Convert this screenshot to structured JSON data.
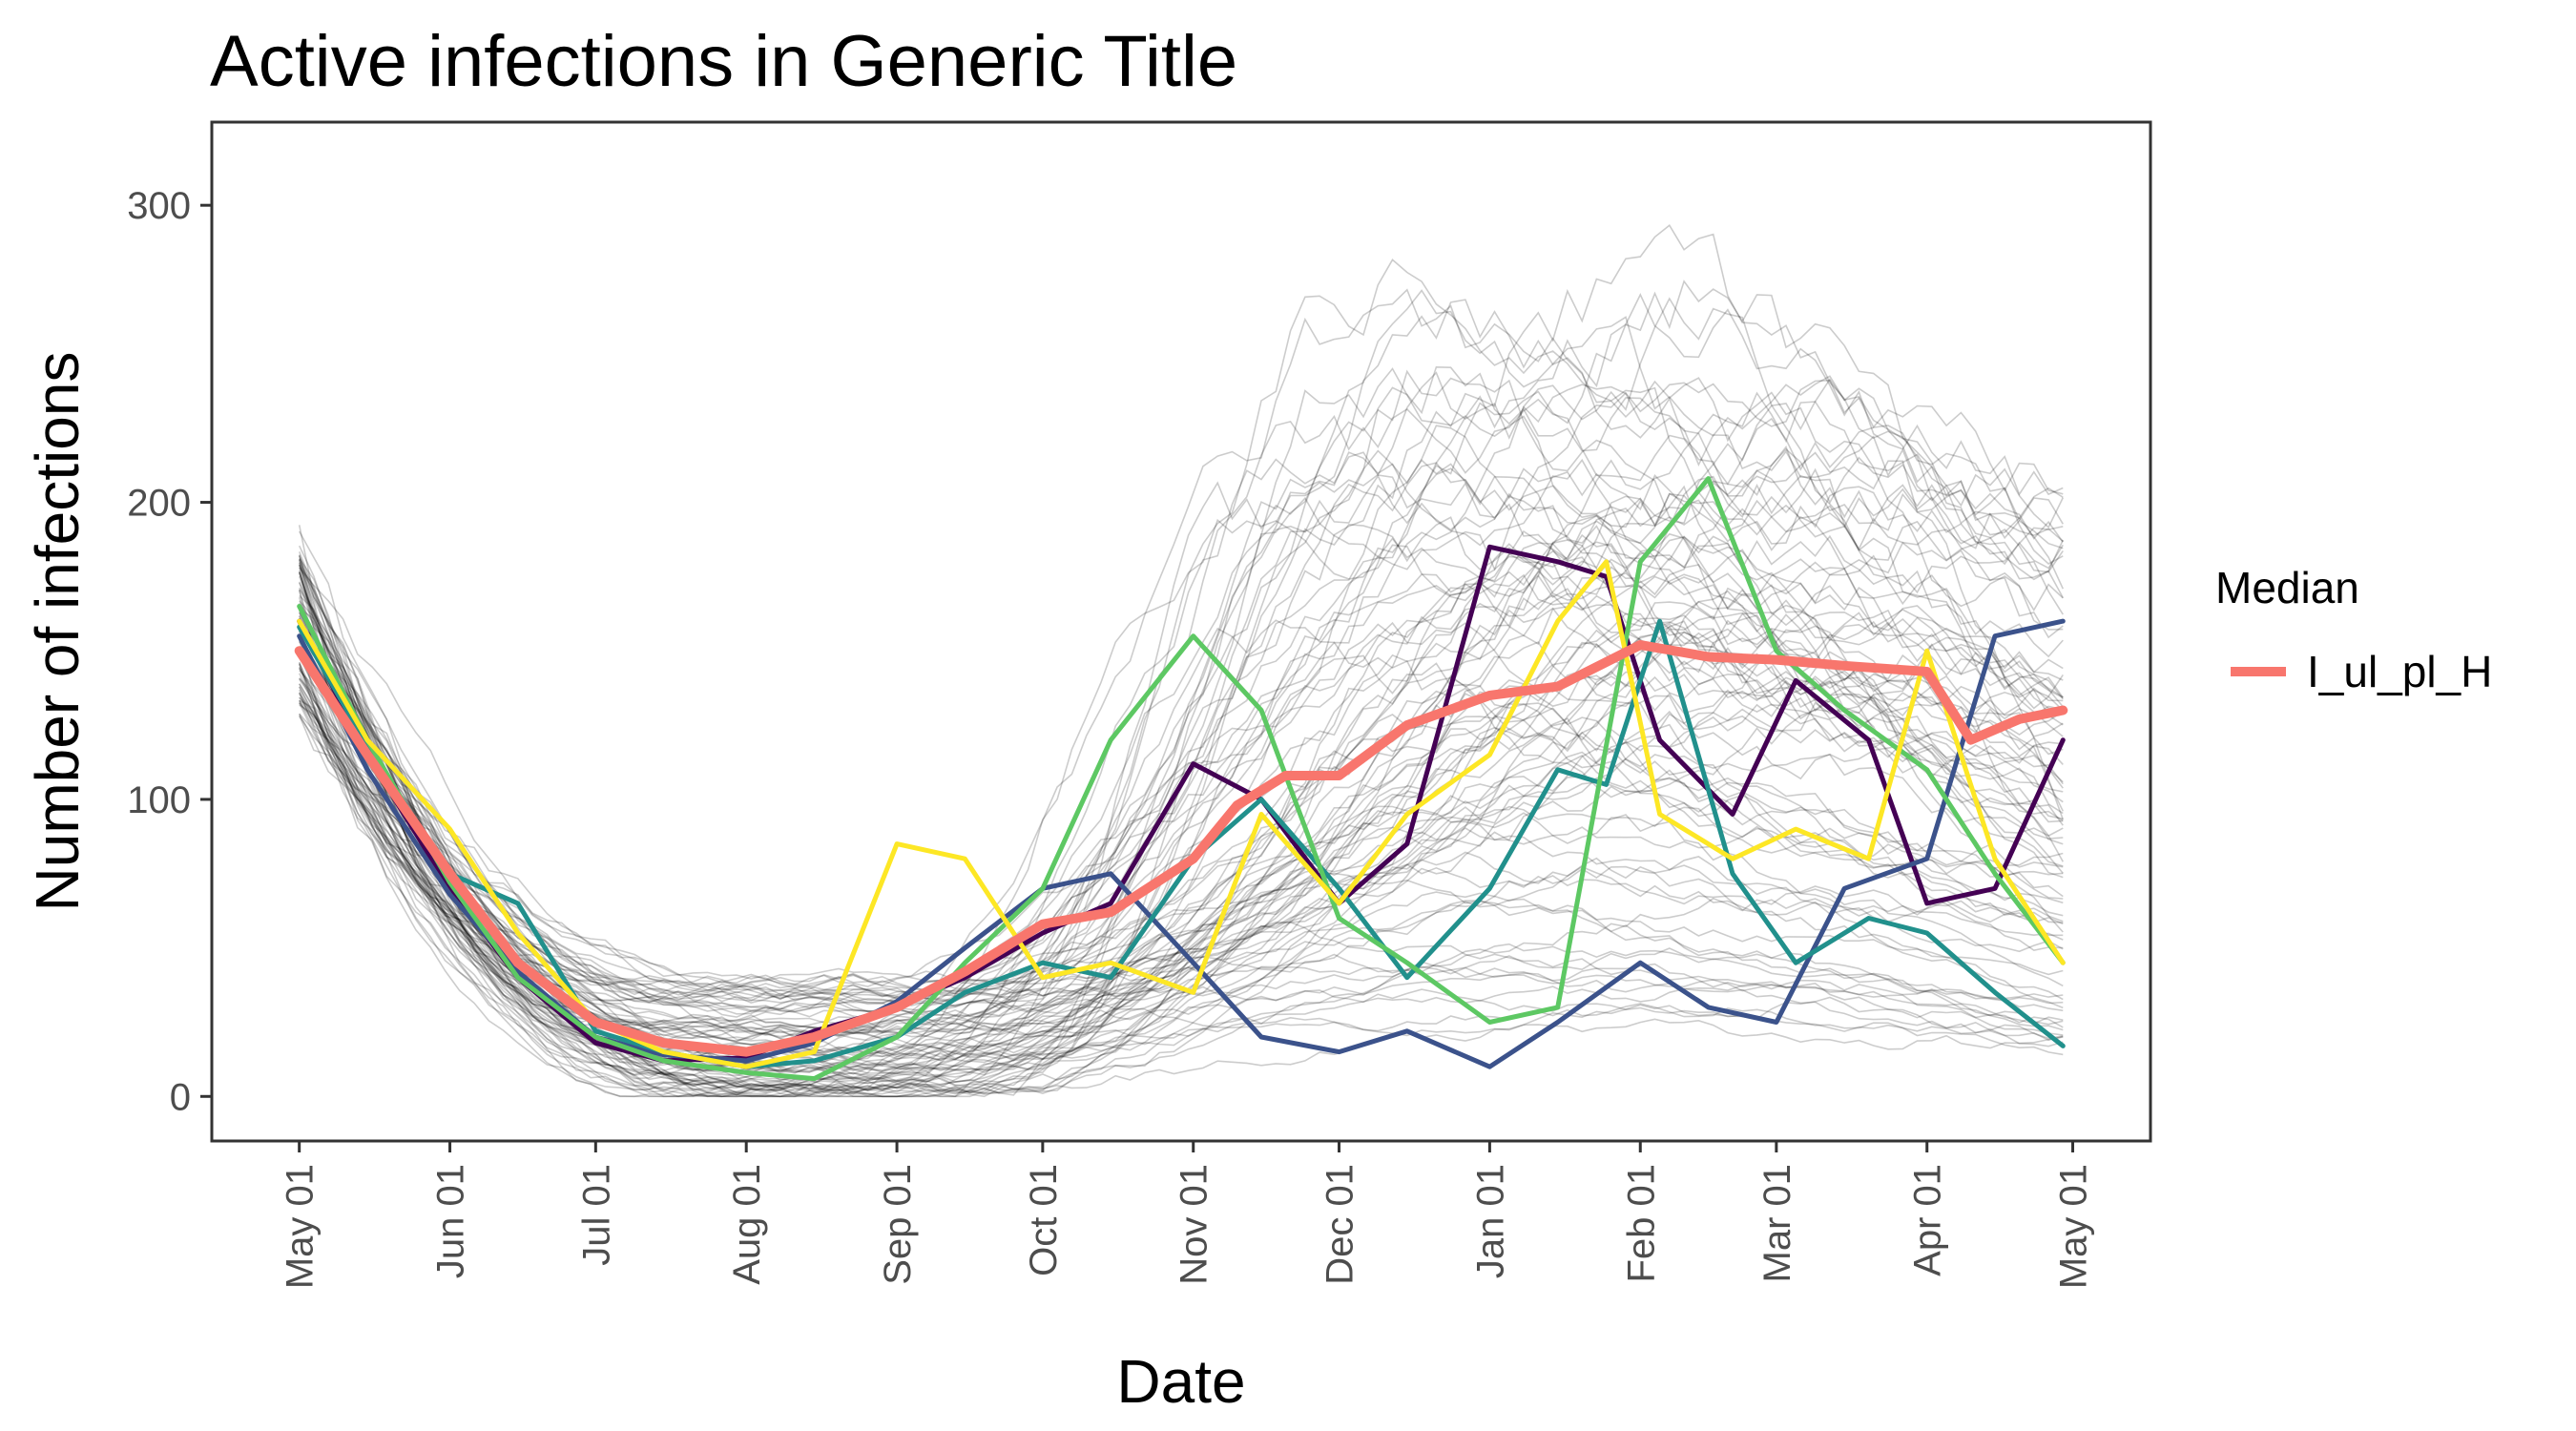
{
  "chart_data": {
    "type": "line",
    "title": "Active infections in Generic Title",
    "xlabel": "Date",
    "ylabel": "Number of infections",
    "x_type": "date",
    "x_start": "2021-05-01",
    "x_end": "2022-04-29",
    "x_ticks": [
      {
        "date": "2021-05-01",
        "label": "May 01"
      },
      {
        "date": "2021-06-01",
        "label": "Jun 01"
      },
      {
        "date": "2021-07-01",
        "label": "Jul 01"
      },
      {
        "date": "2021-08-01",
        "label": "Aug 01"
      },
      {
        "date": "2021-09-01",
        "label": "Sep 01"
      },
      {
        "date": "2021-10-01",
        "label": "Oct 01"
      },
      {
        "date": "2021-11-01",
        "label": "Nov 01"
      },
      {
        "date": "2021-12-01",
        "label": "Dec 01"
      },
      {
        "date": "2022-01-01",
        "label": "Jan 01"
      },
      {
        "date": "2022-02-01",
        "label": "Feb 01"
      },
      {
        "date": "2022-03-01",
        "label": "Mar 01"
      },
      {
        "date": "2022-04-01",
        "label": "Apr 01"
      },
      {
        "date": "2022-05-01",
        "label": "May 01"
      }
    ],
    "ylim": [
      -15,
      328
    ],
    "y_ticks": [
      0,
      100,
      200,
      300
    ],
    "grid": false,
    "legend_position": "right",
    "legend": {
      "title": "Median",
      "entries": [
        {
          "label": "I_ul_pl_H",
          "color": "#F8766D"
        }
      ]
    },
    "background_series": {
      "color": "#000000",
      "description_count": 90,
      "start_range": [
        130,
        185
      ],
      "trough_date": "2021-07-25",
      "trough_range": [
        0,
        40
      ],
      "end_range": [
        0,
        230
      ],
      "peak_max": 310
    },
    "series": [
      {
        "name": "I_ul_pl_H",
        "role": "median",
        "color": "#F8766D",
        "x": [
          "2021-05-01",
          "2021-05-15",
          "2021-06-01",
          "2021-06-15",
          "2021-07-01",
          "2021-07-15",
          "2021-08-01",
          "2021-08-15",
          "2021-09-01",
          "2021-09-15",
          "2021-10-01",
          "2021-10-15",
          "2021-11-01",
          "2021-11-10",
          "2021-11-20",
          "2021-12-01",
          "2021-12-15",
          "2022-01-01",
          "2022-01-15",
          "2022-02-01",
          "2022-02-15",
          "2022-03-01",
          "2022-03-15",
          "2022-04-01",
          "2022-04-10",
          "2022-04-20",
          "2022-04-29"
        ],
        "y": [
          150,
          115,
          75,
          45,
          25,
          18,
          15,
          20,
          30,
          42,
          58,
          62,
          80,
          98,
          108,
          108,
          125,
          135,
          138,
          152,
          148,
          147,
          145,
          143,
          120,
          127,
          130
        ]
      },
      {
        "color": "#440154",
        "x": [
          "2021-05-01",
          "2021-05-15",
          "2021-06-01",
          "2021-06-15",
          "2021-07-01",
          "2021-07-15",
          "2021-08-01",
          "2021-08-15",
          "2021-09-01",
          "2021-09-15",
          "2021-10-01",
          "2021-10-15",
          "2021-11-01",
          "2021-11-15",
          "2021-12-01",
          "2021-12-15",
          "2022-01-01",
          "2022-01-15",
          "2022-01-25",
          "2022-02-05",
          "2022-02-20",
          "2022-03-05",
          "2022-03-20",
          "2022-04-01",
          "2022-04-15",
          "2022-04-29"
        ],
        "y": [
          160,
          115,
          70,
          40,
          18,
          12,
          13,
          22,
          30,
          40,
          55,
          65,
          112,
          100,
          65,
          85,
          185,
          180,
          175,
          120,
          95,
          140,
          120,
          65,
          70,
          120
        ]
      },
      {
        "color": "#3B528B",
        "x": [
          "2021-05-01",
          "2021-05-15",
          "2021-06-01",
          "2021-06-15",
          "2021-07-01",
          "2021-07-15",
          "2021-08-01",
          "2021-08-15",
          "2021-09-01",
          "2021-09-15",
          "2021-10-01",
          "2021-10-15",
          "2021-11-01",
          "2021-11-15",
          "2021-12-01",
          "2021-12-15",
          "2022-01-01",
          "2022-01-15",
          "2022-02-01",
          "2022-02-15",
          "2022-03-01",
          "2022-03-15",
          "2022-04-01",
          "2022-04-15",
          "2022-04-29"
        ],
        "y": [
          155,
          110,
          68,
          42,
          20,
          14,
          12,
          18,
          32,
          50,
          70,
          75,
          45,
          20,
          15,
          22,
          10,
          25,
          45,
          30,
          25,
          70,
          80,
          155,
          160
        ]
      },
      {
        "color": "#21908C",
        "x": [
          "2021-05-01",
          "2021-05-15",
          "2021-06-01",
          "2021-06-15",
          "2021-07-01",
          "2021-07-15",
          "2021-08-01",
          "2021-08-15",
          "2021-09-01",
          "2021-09-15",
          "2021-10-01",
          "2021-10-15",
          "2021-11-01",
          "2021-11-15",
          "2021-12-01",
          "2021-12-15",
          "2022-01-01",
          "2022-01-15",
          "2022-01-25",
          "2022-02-05",
          "2022-02-20",
          "2022-03-05",
          "2022-03-20",
          "2022-04-01",
          "2022-04-15",
          "2022-04-29"
        ],
        "y": [
          158,
          118,
          75,
          65,
          22,
          15,
          10,
          12,
          20,
          35,
          45,
          40,
          80,
          100,
          70,
          40,
          70,
          110,
          105,
          160,
          75,
          45,
          60,
          55,
          35,
          17
        ]
      },
      {
        "color": "#5DC863",
        "x": [
          "2021-05-01",
          "2021-05-15",
          "2021-06-01",
          "2021-06-15",
          "2021-07-01",
          "2021-07-15",
          "2021-08-01",
          "2021-08-15",
          "2021-09-01",
          "2021-09-15",
          "2021-10-01",
          "2021-10-15",
          "2021-11-01",
          "2021-11-15",
          "2021-12-01",
          "2021-12-15",
          "2022-01-01",
          "2022-01-15",
          "2022-02-01",
          "2022-02-15",
          "2022-03-01",
          "2022-03-15",
          "2022-04-01",
          "2022-04-15",
          "2022-04-29"
        ],
        "y": [
          165,
          120,
          72,
          40,
          20,
          12,
          8,
          6,
          20,
          45,
          70,
          120,
          155,
          130,
          60,
          45,
          25,
          30,
          180,
          208,
          150,
          130,
          110,
          75,
          45
        ]
      },
      {
        "color": "#FDE725",
        "x": [
          "2021-05-01",
          "2021-05-15",
          "2021-06-01",
          "2021-06-15",
          "2021-07-01",
          "2021-07-15",
          "2021-08-01",
          "2021-08-15",
          "2021-09-01",
          "2021-09-15",
          "2021-10-01",
          "2021-10-15",
          "2021-11-01",
          "2021-11-15",
          "2021-12-01",
          "2021-12-15",
          "2022-01-01",
          "2022-01-15",
          "2022-01-25",
          "2022-02-05",
          "2022-02-20",
          "2022-03-05",
          "2022-03-20",
          "2022-04-01",
          "2022-04-15",
          "2022-04-29"
        ],
        "y": [
          160,
          120,
          90,
          55,
          25,
          15,
          10,
          15,
          85,
          80,
          40,
          45,
          35,
          95,
          65,
          95,
          115,
          160,
          180,
          95,
          80,
          90,
          80,
          150,
          80,
          45
        ]
      }
    ]
  }
}
